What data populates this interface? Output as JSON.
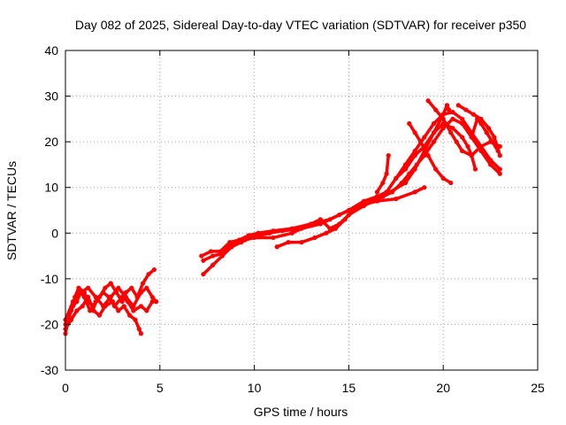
{
  "chart_data": {
    "type": "scatter",
    "title": "Day 082 of 2025, Sidereal Day-to-day VTEC variation (SDTVAR) for receiver p350",
    "xlabel": "GPS time / hours",
    "ylabel": "SDTVAR / TECUs",
    "xlim": [
      0,
      25
    ],
    "ylim": [
      -30,
      40
    ],
    "xticks": [
      0,
      5,
      10,
      15,
      20,
      25
    ],
    "yticks": [
      -30,
      -20,
      -10,
      0,
      10,
      20,
      30,
      40
    ],
    "grid": true,
    "series_color": "#ff0000",
    "series": [
      {
        "values": [
          [
            0,
            -22
          ],
          [
            0.2,
            -18
          ],
          [
            0.4,
            -16
          ],
          [
            0.6,
            -15
          ],
          [
            0.8,
            -13
          ],
          [
            1.0,
            -14
          ],
          [
            1.3,
            -17
          ],
          [
            1.6,
            -15
          ],
          [
            2.0,
            -13
          ],
          [
            2.3,
            -14
          ],
          [
            2.6,
            -16
          ],
          [
            3.0,
            -14
          ],
          [
            3.3,
            -15
          ],
          [
            3.6,
            -17
          ],
          [
            4.0,
            -16
          ],
          [
            4.3,
            -17
          ],
          [
            4.6,
            -15
          ],
          [
            4.8,
            -15
          ]
        ]
      },
      {
        "values": [
          [
            0,
            -20
          ],
          [
            0.3,
            -17
          ],
          [
            0.5,
            -14
          ],
          [
            0.7,
            -12
          ],
          [
            1.0,
            -13
          ],
          [
            1.2,
            -15
          ],
          [
            1.5,
            -16
          ],
          [
            1.8,
            -14
          ],
          [
            2.1,
            -12
          ],
          [
            2.4,
            -11
          ],
          [
            2.7,
            -13
          ],
          [
            3.0,
            -15
          ],
          [
            3.2,
            -13
          ],
          [
            3.5,
            -12
          ],
          [
            3.8,
            -14
          ],
          [
            4.1,
            -11
          ],
          [
            4.4,
            -9
          ],
          [
            4.7,
            -8
          ]
        ]
      },
      {
        "values": [
          [
            0,
            -21
          ],
          [
            0.3,
            -19
          ],
          [
            0.6,
            -17
          ],
          [
            0.9,
            -16
          ],
          [
            1.2,
            -14
          ],
          [
            1.5,
            -17
          ],
          [
            1.8,
            -18
          ],
          [
            2.1,
            -16
          ],
          [
            2.5,
            -15
          ],
          [
            2.8,
            -17
          ],
          [
            3.1,
            -16
          ],
          [
            3.4,
            -18
          ],
          [
            3.7,
            -19
          ],
          [
            3.9,
            -21
          ],
          [
            4.0,
            -22
          ]
        ]
      },
      {
        "values": [
          [
            0,
            -19
          ],
          [
            0.4,
            -15
          ],
          [
            0.8,
            -13
          ],
          [
            1.2,
            -12
          ],
          [
            1.6,
            -14
          ],
          [
            2.0,
            -16
          ],
          [
            2.4,
            -14
          ],
          [
            2.8,
            -12
          ],
          [
            3.2,
            -14
          ],
          [
            3.6,
            -16
          ],
          [
            4.0,
            -13
          ],
          [
            4.3,
            -12
          ],
          [
            4.6,
            -14
          ],
          [
            4.8,
            -15
          ]
        ]
      },
      {
        "values": [
          [
            7.3,
            -9
          ],
          [
            7.8,
            -7
          ],
          [
            8.3,
            -5
          ],
          [
            8.8,
            -3
          ],
          [
            9.3,
            -2
          ],
          [
            9.8,
            -1
          ],
          [
            10.3,
            -0.5
          ],
          [
            10.8,
            0
          ],
          [
            11.5,
            0.5
          ],
          [
            12.5,
            1
          ],
          [
            13.5,
            2
          ],
          [
            14.5,
            4
          ],
          [
            15.5,
            6
          ],
          [
            16.5,
            7
          ],
          [
            17.5,
            7.5
          ],
          [
            18.5,
            9
          ],
          [
            19.0,
            10
          ]
        ]
      },
      {
        "values": [
          [
            7.2,
            -5
          ],
          [
            7.7,
            -4
          ],
          [
            8.2,
            -4
          ],
          [
            8.7,
            -2
          ],
          [
            9.2,
            -1.5
          ],
          [
            9.7,
            -0.5
          ],
          [
            10.2,
            0
          ],
          [
            11.0,
            0.5
          ],
          [
            12.0,
            1
          ],
          [
            13.0,
            2
          ],
          [
            14.0,
            3
          ],
          [
            15.0,
            5
          ],
          [
            15.8,
            7
          ],
          [
            16.5,
            8
          ],
          [
            17.2,
            9
          ],
          [
            18.0,
            11
          ],
          [
            18.5,
            14
          ],
          [
            19.0,
            18
          ],
          [
            19.5,
            22
          ],
          [
            20.0,
            26
          ],
          [
            20.2,
            28
          ],
          [
            20.3,
            27
          ]
        ]
      },
      {
        "values": [
          [
            7.3,
            -6
          ],
          [
            7.8,
            -5
          ],
          [
            8.3,
            -4.5
          ],
          [
            8.8,
            -2.5
          ],
          [
            9.5,
            -1.5
          ],
          [
            10.0,
            -1
          ],
          [
            11.0,
            -1
          ],
          [
            12.0,
            0
          ],
          [
            13.0,
            2
          ],
          [
            13.5,
            3
          ],
          [
            14.0,
            1
          ],
          [
            14.5,
            2
          ],
          [
            15.0,
            4
          ],
          [
            15.8,
            6
          ],
          [
            16.5,
            8
          ],
          [
            17.0,
            9
          ],
          [
            17.5,
            12
          ],
          [
            18.0,
            15
          ],
          [
            18.5,
            18
          ],
          [
            19.0,
            21
          ],
          [
            19.5,
            24
          ],
          [
            20.0,
            26
          ],
          [
            20.5,
            26.5
          ],
          [
            21.0,
            25
          ],
          [
            21.5,
            22
          ],
          [
            22.0,
            19
          ],
          [
            22.5,
            16
          ],
          [
            23.0,
            14
          ]
        ]
      },
      {
        "values": [
          [
            11.2,
            -3
          ],
          [
            11.8,
            -2
          ],
          [
            12.5,
            -2
          ],
          [
            13.2,
            -1
          ],
          [
            13.8,
            0
          ],
          [
            14.3,
            1
          ],
          [
            14.8,
            3
          ],
          [
            15.2,
            5
          ],
          [
            15.8,
            6
          ],
          [
            16.3,
            7
          ],
          [
            16.8,
            8
          ],
          [
            17.3,
            9
          ],
          [
            17.8,
            11
          ],
          [
            18.2,
            13
          ],
          [
            18.6,
            15
          ],
          [
            19.0,
            17
          ],
          [
            19.5,
            20
          ],
          [
            20.0,
            23
          ],
          [
            20.5,
            25
          ],
          [
            21.0,
            24
          ],
          [
            21.5,
            21
          ],
          [
            22.0,
            18
          ],
          [
            22.5,
            15
          ],
          [
            23.0,
            13
          ]
        ]
      },
      {
        "values": [
          [
            16.5,
            9
          ],
          [
            16.8,
            11
          ],
          [
            17.0,
            13
          ],
          [
            17.1,
            17
          ]
        ]
      },
      {
        "values": [
          [
            17.5,
            12
          ],
          [
            18.0,
            14
          ],
          [
            18.5,
            17
          ],
          [
            19.0,
            19
          ],
          [
            19.5,
            22
          ],
          [
            20.0,
            24
          ],
          [
            20.5,
            23
          ],
          [
            21.0,
            21
          ],
          [
            21.3,
            19
          ],
          [
            21.5,
            17
          ],
          [
            21.7,
            14
          ]
        ]
      },
      {
        "values": [
          [
            18.2,
            24
          ],
          [
            18.5,
            22
          ],
          [
            18.8,
            20
          ],
          [
            19.2,
            17
          ],
          [
            19.6,
            14
          ],
          [
            20.0,
            12
          ],
          [
            20.4,
            11
          ]
        ]
      },
      {
        "values": [
          [
            19.2,
            29
          ],
          [
            19.6,
            27
          ],
          [
            20.0,
            25
          ],
          [
            20.4,
            22
          ],
          [
            20.7,
            20
          ],
          [
            21.0,
            18
          ],
          [
            21.5,
            17
          ],
          [
            22.0,
            19
          ],
          [
            22.5,
            20
          ],
          [
            23.0,
            19
          ]
        ]
      },
      {
        "values": [
          [
            20.8,
            28
          ],
          [
            21.2,
            27
          ],
          [
            21.6,
            26
          ],
          [
            22.0,
            25
          ],
          [
            22.4,
            23
          ],
          [
            22.7,
            21
          ],
          [
            23.0,
            17
          ]
        ]
      },
      {
        "values": [
          [
            21.5,
            21
          ],
          [
            21.8,
            25
          ],
          [
            22.0,
            24
          ],
          [
            22.3,
            22
          ],
          [
            22.6,
            20
          ],
          [
            22.9,
            18
          ]
        ]
      }
    ]
  }
}
